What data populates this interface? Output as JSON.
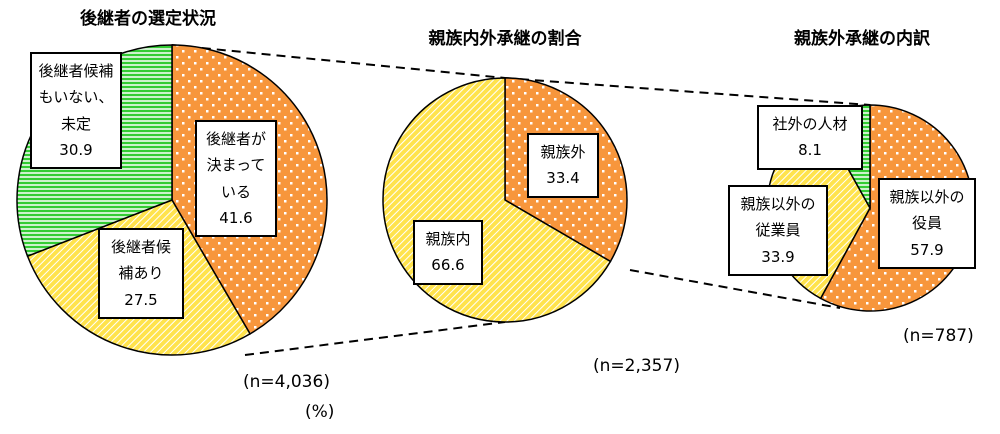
{
  "chart_data": [
    {
      "type": "pie",
      "title": "後継者の選定状況",
      "labels": [
        "後継者が決まっている",
        "後継者候補あり",
        "後継者候補もいない、未定"
      ],
      "values": [
        41.6,
        27.5,
        30.9
      ],
      "colors": [
        "#f7963c",
        "#ffe34d",
        "#33cc33"
      ],
      "patterns": [
        "dots",
        "diagonal",
        "horizontal"
      ],
      "note": "(n=4,036)",
      "unit": "(%)"
    },
    {
      "type": "pie",
      "title": "親族内外承継の割合",
      "labels": [
        "親族外",
        "親族内"
      ],
      "values": [
        33.4,
        66.6
      ],
      "colors": [
        "#f7963c",
        "#ffe34d"
      ],
      "patterns": [
        "dots",
        "diagonal"
      ],
      "note": "(n=2,357)"
    },
    {
      "type": "pie",
      "title": "親族外承継の内訳",
      "labels": [
        "親族以外の役員",
        "親族以外の従業員",
        "社外の人材"
      ],
      "values": [
        57.9,
        33.9,
        8.1
      ],
      "colors": [
        "#f7963c",
        "#ffe34d",
        "#33cc33"
      ],
      "patterns": [
        "dots",
        "diagonal",
        "horizontal"
      ],
      "note": "(n=787)"
    }
  ]
}
